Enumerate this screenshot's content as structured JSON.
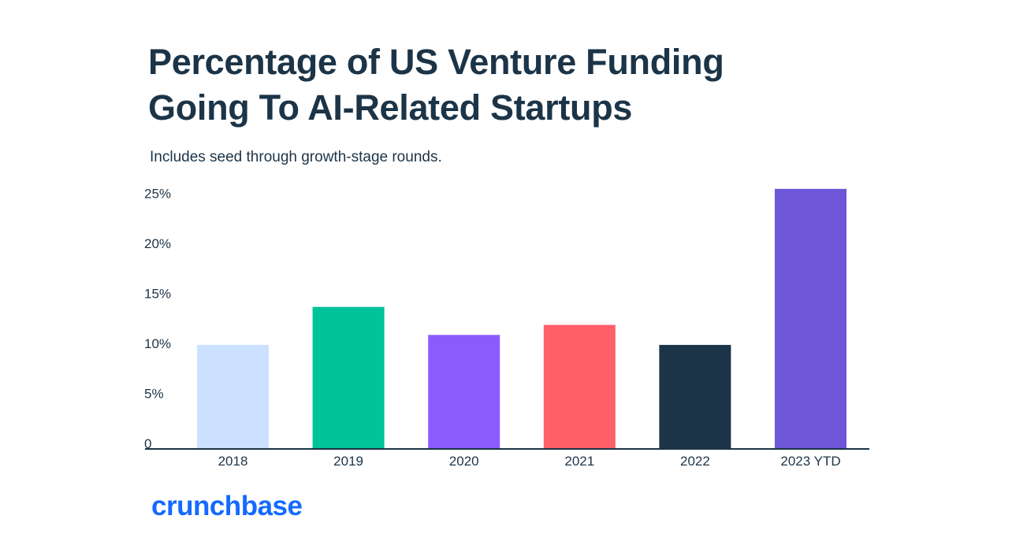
{
  "title_lines": [
    "Percentage of US Venture Funding",
    "Going To AI-Related Startups"
  ],
  "subtitle": "Includes seed through growth-stage rounds.",
  "logo": {
    "text": "crunchbase",
    "color": "#146aff"
  },
  "chart_data": {
    "type": "bar",
    "title": "Percentage of US Venture Funding Going To AI-Related Startups",
    "subtitle": "Includes seed through growth-stage rounds.",
    "categories": [
      "2018",
      "2019",
      "2020",
      "2021",
      "2022",
      "2023 YTD"
    ],
    "values": [
      10.4,
      14.2,
      11.4,
      12.4,
      10.4,
      26
    ],
    "colors": [
      "#cce0ff",
      "#00c29b",
      "#8b5cfb",
      "#ff5f69",
      "#1c3447",
      "#6e56d9"
    ],
    "ylim": [
      0,
      26
    ],
    "yticks": [
      0,
      5,
      10,
      15,
      20,
      25
    ],
    "ytick_labels": [
      "0",
      "5%",
      "10%",
      "15%",
      "20%",
      "25%"
    ],
    "xlabel": "",
    "ylabel": "",
    "grid": false,
    "legend": "none"
  }
}
